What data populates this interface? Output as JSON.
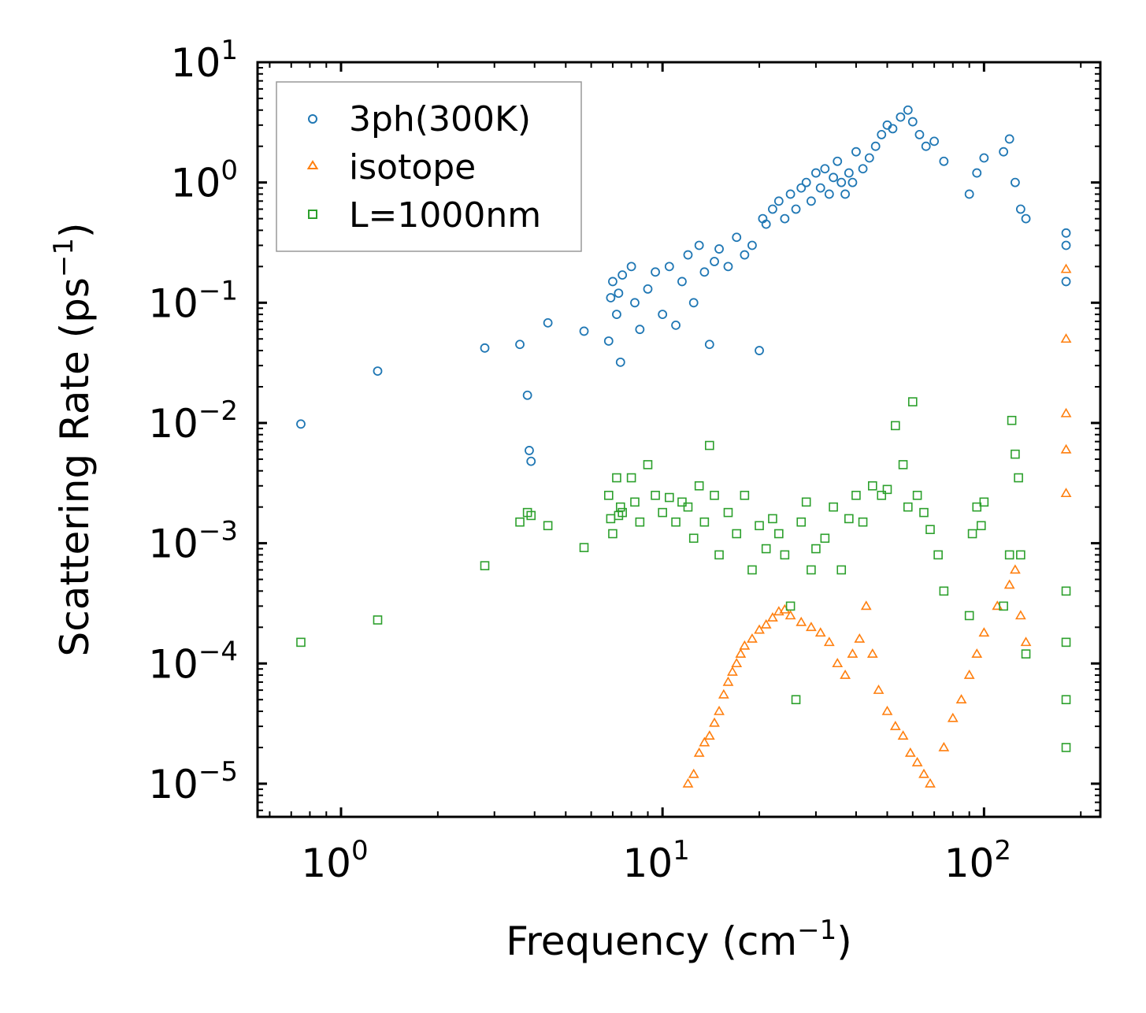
{
  "chart_data": {
    "type": "scatter",
    "title": "",
    "xlabel": "Frequency (cm",
    "xlabel_sup": "−1",
    "xlabel_tail": ")",
    "ylabel": "Scattering Rate (ps",
    "ylabel_sup": "−1",
    "ylabel_tail": ")",
    "xscale": "log",
    "yscale": "log",
    "xlim": [
      0.55,
      230
    ],
    "ylim": [
      5.3e-06,
      10
    ],
    "x_ticks": [
      {
        "base": "10",
        "exp": "0",
        "value": 1
      },
      {
        "base": "10",
        "exp": "1",
        "value": 10
      },
      {
        "base": "10",
        "exp": "2",
        "value": 100
      }
    ],
    "y_ticks": [
      {
        "base": "10",
        "exp": "1",
        "value": 10
      },
      {
        "base": "10",
        "exp": "0",
        "value": 1
      },
      {
        "base": "10",
        "exp": "−1",
        "value": 0.1
      },
      {
        "base": "10",
        "exp": "−2",
        "value": 0.01
      },
      {
        "base": "10",
        "exp": "−3",
        "value": 0.001
      },
      {
        "base": "10",
        "exp": "−4",
        "value": 0.0001
      },
      {
        "base": "10",
        "exp": "−5",
        "value": 1e-05
      }
    ],
    "legend_position": "upper-left",
    "series": [
      {
        "name": "3ph(300K)",
        "marker": "circle",
        "color": "#1f77b4",
        "x": [
          0.75,
          1.3,
          2.8,
          3.6,
          3.8,
          3.85,
          3.9,
          4.4,
          5.7,
          6.8,
          6.9,
          7.0,
          7.2,
          7.3,
          7.4,
          7.5,
          8.0,
          8.2,
          8.5,
          9.0,
          9.5,
          10.0,
          10.5,
          11.0,
          11.5,
          12.0,
          12.5,
          13.0,
          13.5,
          14.0,
          14.5,
          15.0,
          16.0,
          17.0,
          18.0,
          19.0,
          20.0,
          20.5,
          21.0,
          22.0,
          23.0,
          24.0,
          25.0,
          26.0,
          27.0,
          28.0,
          29.0,
          30.0,
          31.0,
          32.0,
          33.0,
          34.0,
          35.0,
          36.0,
          37.0,
          38.0,
          39.0,
          40.0,
          42.0,
          44.0,
          46.0,
          48.0,
          50.0,
          52.0,
          55.0,
          58.0,
          60.0,
          63.0,
          66.0,
          70.0,
          75.0,
          90.0,
          95.0,
          100.0,
          115.0,
          120.0,
          125.0,
          130.0,
          135.0,
          180.0,
          180.0,
          180.0
        ],
        "y": [
          0.0098,
          0.027,
          0.042,
          0.045,
          0.017,
          0.0059,
          0.0048,
          0.068,
          0.058,
          0.048,
          0.11,
          0.15,
          0.08,
          0.12,
          0.032,
          0.17,
          0.2,
          0.1,
          0.06,
          0.13,
          0.18,
          0.08,
          0.2,
          0.065,
          0.15,
          0.25,
          0.1,
          0.3,
          0.18,
          0.045,
          0.22,
          0.28,
          0.2,
          0.35,
          0.25,
          0.3,
          0.04,
          0.5,
          0.45,
          0.6,
          0.7,
          0.5,
          0.8,
          0.6,
          0.9,
          1.0,
          0.7,
          1.2,
          0.9,
          1.3,
          0.8,
          1.1,
          1.5,
          1.0,
          0.8,
          1.2,
          1.0,
          1.8,
          1.3,
          1.6,
          2.0,
          2.5,
          3.0,
          2.8,
          3.5,
          4.0,
          3.2,
          2.5,
          2.0,
          2.2,
          1.5,
          0.8,
          1.2,
          1.6,
          1.8,
          2.3,
          1.0,
          0.6,
          0.5,
          0.3,
          0.15,
          0.38
        ]
      },
      {
        "name": "isotope",
        "marker": "triangle",
        "color": "#ff7f0e",
        "x": [
          12.0,
          12.5,
          13.0,
          13.5,
          14.0,
          14.5,
          15.0,
          15.5,
          16.0,
          16.5,
          17.0,
          17.5,
          18.0,
          19.0,
          20.0,
          21.0,
          22.0,
          23.0,
          24.0,
          25.0,
          27.0,
          29.0,
          31.0,
          33.0,
          35.0,
          37.0,
          39.0,
          41.0,
          43.0,
          45.0,
          47.0,
          50.0,
          53.0,
          56.0,
          59.0,
          62.0,
          65.0,
          68.0,
          75.0,
          80.0,
          85.0,
          90.0,
          95.0,
          100.0,
          110.0,
          120.0,
          125.0,
          130.0,
          135.0,
          180.0,
          180.0,
          180.0,
          180.0,
          180.0
        ],
        "y": [
          1e-05,
          1.2e-05,
          1.8e-05,
          2.2e-05,
          2.5e-05,
          3.2e-05,
          4e-05,
          5.5e-05,
          7e-05,
          8.5e-05,
          0.0001,
          0.00012,
          0.00014,
          0.00016,
          0.00019,
          0.00021,
          0.00024,
          0.00027,
          0.00028,
          0.00025,
          0.00022,
          0.0002,
          0.00018,
          0.00015,
          0.0001,
          8e-05,
          0.00012,
          0.00016,
          0.0003,
          0.00012,
          6e-05,
          4e-05,
          3e-05,
          2.5e-05,
          1.8e-05,
          1.5e-05,
          1.2e-05,
          1e-05,
          2e-05,
          3.5e-05,
          5e-05,
          8e-05,
          0.00012,
          0.00018,
          0.0003,
          0.00045,
          0.0006,
          0.00025,
          0.00015,
          0.0026,
          0.006,
          0.012,
          0.05,
          0.19
        ]
      },
      {
        "name": "L=1000nm",
        "marker": "square",
        "color": "#2ca02c",
        "x": [
          0.75,
          1.3,
          2.8,
          3.6,
          3.8,
          3.9,
          4.4,
          5.7,
          6.8,
          6.9,
          7.0,
          7.2,
          7.3,
          7.4,
          7.5,
          8.0,
          8.2,
          8.5,
          9.0,
          9.5,
          10.0,
          10.5,
          11.0,
          11.5,
          12.0,
          12.5,
          13.0,
          13.5,
          14.0,
          14.5,
          15.0,
          16.0,
          17.0,
          18.0,
          19.0,
          20.0,
          21.0,
          22.0,
          23.0,
          24.0,
          25.0,
          26.0,
          27.0,
          28.0,
          29.0,
          30.0,
          32.0,
          34.0,
          36.0,
          38.0,
          40.0,
          42.0,
          45.0,
          48.0,
          50.0,
          53.0,
          56.0,
          58.0,
          60.0,
          62.0,
          65.0,
          68.0,
          72.0,
          75.0,
          90.0,
          92.0,
          95.0,
          98.0,
          100.0,
          115.0,
          120.0,
          122.0,
          125.0,
          128.0,
          130.0,
          135.0,
          180.0,
          180.0,
          180.0,
          180.0
        ],
        "y": [
          0.00015,
          0.00023,
          0.00065,
          0.0015,
          0.0018,
          0.0017,
          0.0014,
          0.00092,
          0.0025,
          0.0016,
          0.0012,
          0.0035,
          0.0017,
          0.002,
          0.0018,
          0.0035,
          0.0022,
          0.0015,
          0.0045,
          0.0025,
          0.0018,
          0.0024,
          0.0015,
          0.0022,
          0.002,
          0.0011,
          0.003,
          0.0015,
          0.0065,
          0.0025,
          0.0008,
          0.0018,
          0.0012,
          0.0025,
          0.0006,
          0.0014,
          0.0009,
          0.0016,
          0.0012,
          0.0008,
          0.0003,
          5e-05,
          0.0015,
          0.0022,
          0.0006,
          0.0009,
          0.0011,
          0.002,
          0.0006,
          0.0016,
          0.0025,
          0.0015,
          0.003,
          0.0025,
          0.0028,
          0.0095,
          0.0045,
          0.002,
          0.015,
          0.0025,
          0.0018,
          0.0013,
          0.0008,
          0.0004,
          0.00025,
          0.0012,
          0.002,
          0.0014,
          0.0022,
          0.0003,
          0.0008,
          0.0105,
          0.0055,
          0.0035,
          0.0008,
          0.00012,
          2e-05,
          5e-05,
          0.00015,
          0.0004
        ]
      }
    ]
  },
  "legend": {
    "entries": [
      "3ph(300K)",
      "isotope",
      "L=1000nm"
    ]
  },
  "colors": {
    "blue": "#1f77b4",
    "orange": "#ff7f0e",
    "green": "#2ca02c"
  }
}
